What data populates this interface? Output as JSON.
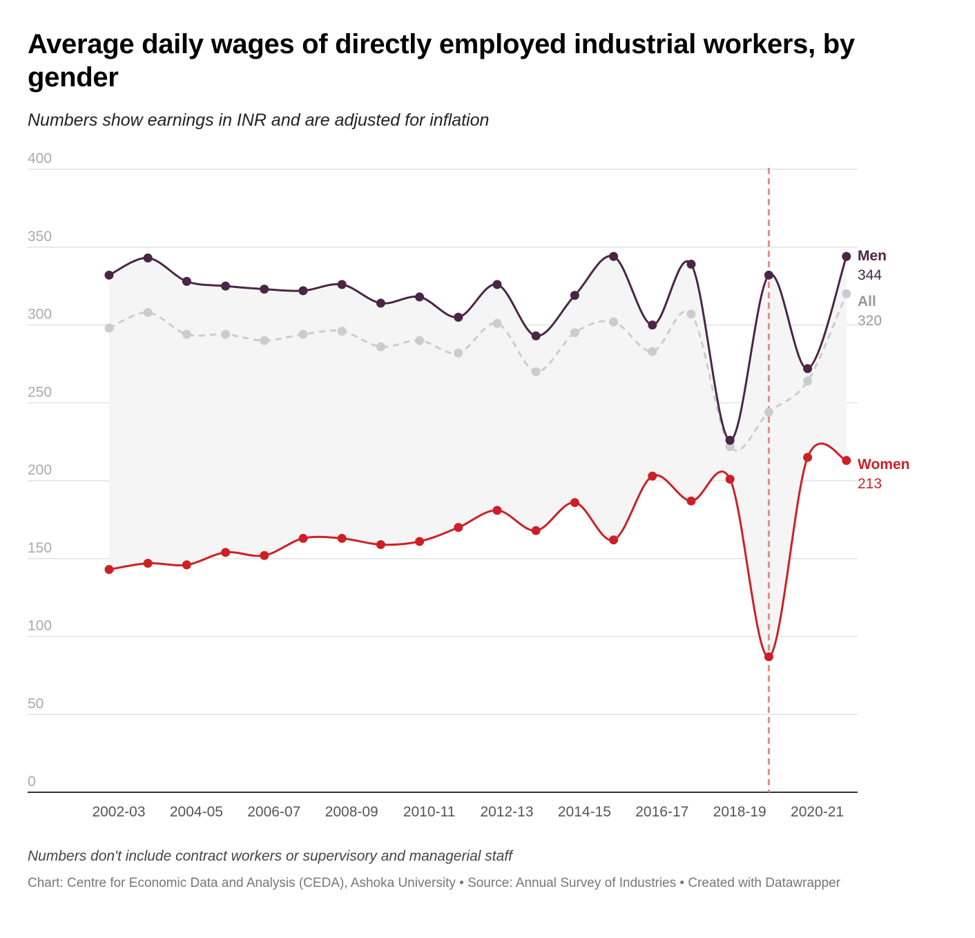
{
  "title": "Average daily wages of directly employed industrial workers, by gender",
  "subtitle": "Numbers show earnings in INR and are adjusted for inflation",
  "note": "Numbers don't include contract workers or supervisory and managerial staff",
  "credit": "Chart: Centre for Economic Data and Analysis (CEDA), Ashoka University • Source: Annual Survey of Industries • Created with Datawrapper",
  "colors": {
    "men": "#4a2545",
    "women": "#cc2026",
    "all": "#cccccc",
    "range_fill": "#f5f5f5",
    "marker": "#e58a8a",
    "grid": "#e2e2e2",
    "axis": "#333333"
  },
  "chart_data": {
    "type": "line",
    "categories": [
      "2002-03",
      "2003-04",
      "2004-05",
      "2005-06",
      "2006-07",
      "2007-08",
      "2008-09",
      "2009-10",
      "2010-11",
      "2011-12",
      "2012-13",
      "2013-14",
      "2014-15",
      "2015-16",
      "2016-17",
      "2017-18",
      "2018-19",
      "2019-20",
      "2020-21",
      "2021-22"
    ],
    "x_tick_labels": [
      "2002-03",
      "2004-05",
      "2006-07",
      "2008-09",
      "2010-11",
      "2012-13",
      "2014-15",
      "2016-17",
      "2018-19",
      "2020-21"
    ],
    "ylim": [
      0,
      400
    ],
    "y_ticks": [
      0,
      50,
      100,
      150,
      200,
      250,
      300,
      350,
      400
    ],
    "grid": true,
    "range_band": "shaded area between Men and Women lines",
    "vertical_marker": {
      "category": "2019-20",
      "style": "dashed"
    },
    "series": [
      {
        "name": "Men",
        "end_label": "344",
        "style": "solid",
        "values": [
          332,
          343,
          328,
          325,
          323,
          322,
          326,
          314,
          318,
          305,
          326,
          293,
          319,
          344,
          300,
          339,
          226,
          332,
          272,
          344
        ]
      },
      {
        "name": "All",
        "end_label": "320",
        "style": "dashed",
        "values": [
          298,
          308,
          294,
          294,
          290,
          294,
          296,
          286,
          290,
          282,
          301,
          270,
          295,
          302,
          283,
          307,
          222,
          244,
          264,
          320
        ]
      },
      {
        "name": "Women",
        "end_label": "213",
        "style": "solid",
        "values": [
          143,
          147,
          146,
          154,
          152,
          163,
          163,
          159,
          161,
          170,
          181,
          168,
          186,
          162,
          203,
          187,
          201,
          87,
          215,
          213
        ]
      }
    ]
  }
}
